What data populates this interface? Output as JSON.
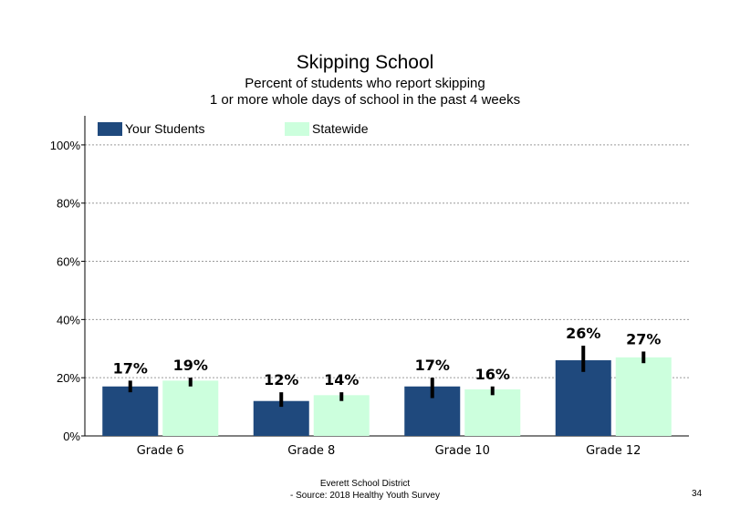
{
  "chart_data": {
    "type": "bar",
    "title": "Skipping School",
    "subtitle": [
      "Percent of students who report skipping",
      "1 or more whole days of school in the past 4 weeks"
    ],
    "categories": [
      "Grade 6",
      "Grade 8",
      "Grade 10",
      "Grade 12"
    ],
    "series": [
      {
        "name": "Your Students",
        "color": "#1f497d",
        "values": [
          17,
          12,
          17,
          26
        ],
        "labels": [
          "17%",
          "12%",
          "17%",
          "26%"
        ],
        "error": [
          [
            15,
            19
          ],
          [
            10,
            15
          ],
          [
            13,
            20
          ],
          [
            22,
            31
          ]
        ]
      },
      {
        "name": "Statewide",
        "color": "#ccffdd",
        "values": [
          19,
          14,
          16,
          27
        ],
        "labels": [
          "19%",
          "14%",
          "16%",
          "27%"
        ],
        "error": [
          [
            17,
            20
          ],
          [
            12,
            15
          ],
          [
            14,
            17
          ],
          [
            25,
            29
          ]
        ]
      }
    ],
    "ylim": [
      0,
      110
    ],
    "yticks": [
      0,
      20,
      40,
      60,
      80,
      100
    ],
    "ytick_labels": [
      "0%",
      "20%",
      "40%",
      "60%",
      "80%",
      "100%"
    ],
    "grid": true,
    "legend_position": "top-left"
  },
  "footer": {
    "line1": "Everett School District",
    "line2": "- Source: 2018 Healthy Youth Survey",
    "page_number": "34"
  }
}
